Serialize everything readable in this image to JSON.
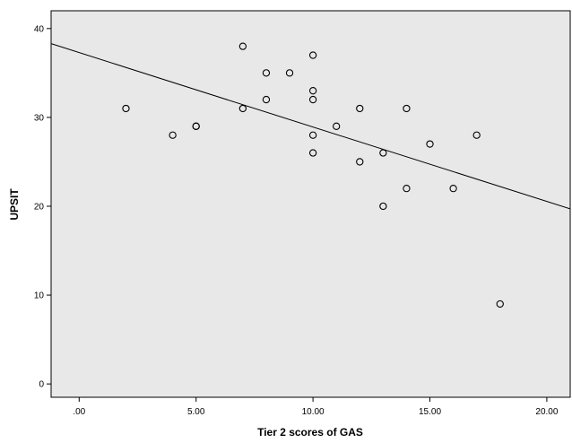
{
  "chart_data": {
    "type": "scatter",
    "title": "",
    "xlabel": "Tier 2 scores of GAS",
    "ylabel": "UPSIT",
    "xlim": [
      -1.2,
      21
    ],
    "ylim": [
      -1.5,
      42
    ],
    "x_ticks": [
      0,
      5,
      10,
      15,
      20
    ],
    "x_tick_labels": [
      ".00",
      "5.00",
      "10.00",
      "15.00",
      "20.00"
    ],
    "y_ticks": [
      0,
      10,
      20,
      30,
      40
    ],
    "y_tick_labels": [
      "0",
      "10",
      "20",
      "30",
      "40"
    ],
    "grid": false,
    "points": [
      {
        "x": 2,
        "y": 31
      },
      {
        "x": 4,
        "y": 28
      },
      {
        "x": 5,
        "y": 29
      },
      {
        "x": 5,
        "y": 29
      },
      {
        "x": 7,
        "y": 38
      },
      {
        "x": 7,
        "y": 31
      },
      {
        "x": 8,
        "y": 35
      },
      {
        "x": 8,
        "y": 32
      },
      {
        "x": 9,
        "y": 35
      },
      {
        "x": 10,
        "y": 37
      },
      {
        "x": 10,
        "y": 33
      },
      {
        "x": 10,
        "y": 32
      },
      {
        "x": 10,
        "y": 28
      },
      {
        "x": 10,
        "y": 26
      },
      {
        "x": 11,
        "y": 29
      },
      {
        "x": 12,
        "y": 31
      },
      {
        "x": 12,
        "y": 25
      },
      {
        "x": 13,
        "y": 26
      },
      {
        "x": 13,
        "y": 20
      },
      {
        "x": 14,
        "y": 31
      },
      {
        "x": 14,
        "y": 22
      },
      {
        "x": 15,
        "y": 27
      },
      {
        "x": 16,
        "y": 22
      },
      {
        "x": 17,
        "y": 28
      },
      {
        "x": 18,
        "y": 9
      }
    ],
    "fit_line": {
      "x": [
        -1.2,
        21
      ],
      "y": [
        38.3,
        19.7
      ]
    },
    "colors": {
      "plot_background": "#e8e8e8",
      "marker_edge": "#000000",
      "fit_line": "#000000"
    }
  }
}
